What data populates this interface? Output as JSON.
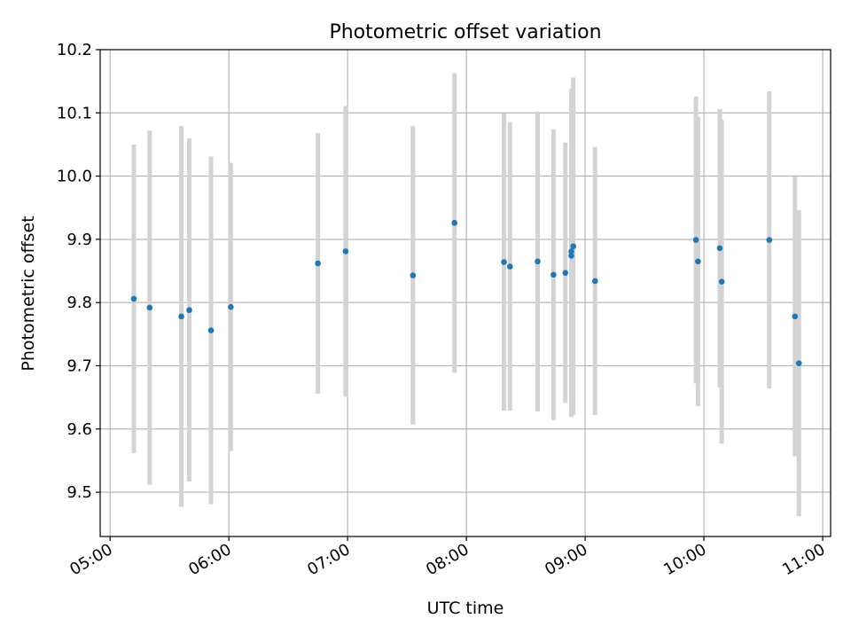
{
  "chart_data": {
    "type": "scatter",
    "title": "Photometric offset variation",
    "xlabel": "UTC time",
    "ylabel": "Photometric offset",
    "xlim": [
      "04:55",
      "11:04"
    ],
    "ylim": [
      9.43,
      10.2
    ],
    "x_ticks": [
      "05:00",
      "06:00",
      "07:00",
      "08:00",
      "09:00",
      "10:00",
      "11:00"
    ],
    "y_ticks": [
      "9.5",
      "9.6",
      "9.7",
      "9.8",
      "9.9",
      "10.0",
      "10.1",
      "10.2"
    ],
    "grid": true,
    "colors": {
      "marker": "#1f77b4",
      "errorbar": "#d3d3d3",
      "grid": "#b0b0b0"
    },
    "points": [
      {
        "t": "05:12",
        "y": 9.806,
        "lo": 9.562,
        "hi": 10.05
      },
      {
        "t": "05:20",
        "y": 9.792,
        "lo": 9.512,
        "hi": 10.072
      },
      {
        "t": "05:36",
        "y": 9.778,
        "lo": 9.477,
        "hi": 10.079
      },
      {
        "t": "05:40",
        "y": 9.788,
        "lo": 9.517,
        "hi": 10.06
      },
      {
        "t": "05:51",
        "y": 9.756,
        "lo": 9.481,
        "hi": 10.031
      },
      {
        "t": "06:01",
        "y": 9.793,
        "lo": 9.565,
        "hi": 10.021
      },
      {
        "t": "06:45",
        "y": 9.862,
        "lo": 9.656,
        "hi": 10.068
      },
      {
        "t": "06:59",
        "y": 9.881,
        "lo": 9.651,
        "hi": 10.111
      },
      {
        "t": "07:33",
        "y": 9.843,
        "lo": 9.607,
        "hi": 10.079
      },
      {
        "t": "07:54",
        "y": 9.926,
        "lo": 9.689,
        "hi": 10.163
      },
      {
        "t": "08:19",
        "y": 9.864,
        "lo": 9.629,
        "hi": 10.099
      },
      {
        "t": "08:22",
        "y": 9.857,
        "lo": 9.629,
        "hi": 10.085
      },
      {
        "t": "08:36",
        "y": 9.865,
        "lo": 9.628,
        "hi": 10.102
      },
      {
        "t": "08:44",
        "y": 9.844,
        "lo": 9.614,
        "hi": 10.074
      },
      {
        "t": "08:50",
        "y": 9.847,
        "lo": 9.641,
        "hi": 10.053
      },
      {
        "t": "08:53",
        "y": 9.874,
        "lo": 9.619,
        "hi": 10.129
      },
      {
        "t": "08:53",
        "y": 9.881,
        "lo": 9.624,
        "hi": 10.138
      },
      {
        "t": "08:54",
        "y": 9.889,
        "lo": 9.622,
        "hi": 10.156
      },
      {
        "t": "09:05",
        "y": 9.834,
        "lo": 9.622,
        "hi": 10.046
      },
      {
        "t": "09:56",
        "y": 9.899,
        "lo": 9.672,
        "hi": 10.126
      },
      {
        "t": "09:57",
        "y": 9.865,
        "lo": 9.636,
        "hi": 10.094
      },
      {
        "t": "10:08",
        "y": 9.886,
        "lo": 9.666,
        "hi": 10.106
      },
      {
        "t": "10:09",
        "y": 9.833,
        "lo": 9.577,
        "hi": 10.089
      },
      {
        "t": "10:33",
        "y": 9.899,
        "lo": 9.664,
        "hi": 10.134
      },
      {
        "t": "10:46",
        "y": 9.778,
        "lo": 9.557,
        "hi": 9.999
      },
      {
        "t": "10:48",
        "y": 9.704,
        "lo": 9.462,
        "hi": 9.946
      }
    ]
  }
}
